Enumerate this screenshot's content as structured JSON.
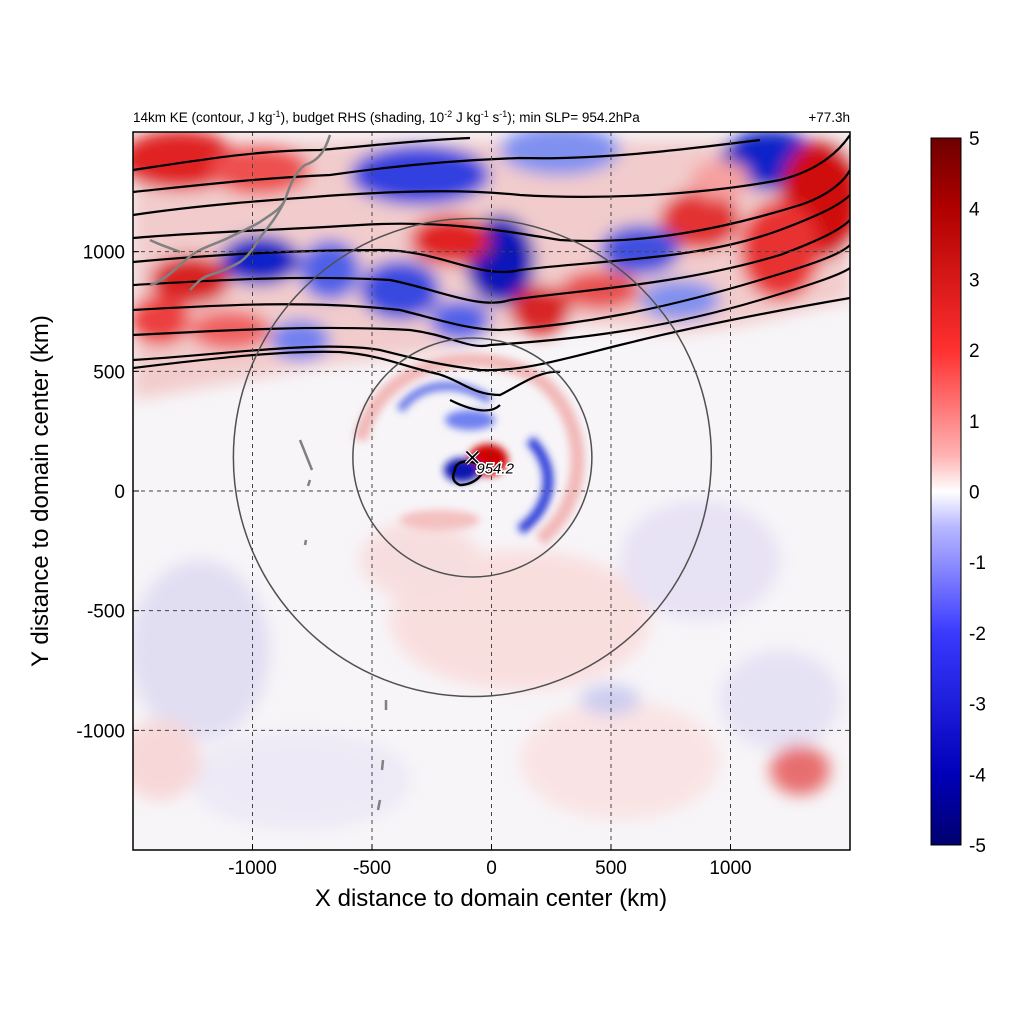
{
  "chart_data": {
    "type": "heatmap",
    "title_left_main": "14km KE (contour, J kg",
    "title_left_sup1": "-1",
    "title_left_mid1": "), budget RHS (shading, 10",
    "title_left_sup2": "-2",
    "title_left_mid2": " J kg",
    "title_left_sup3": "-1",
    "title_left_mid3": " s",
    "title_left_sup4": "-1",
    "title_left_end": "); min SLP= 954.2hPa",
    "title_right": "+77.3h",
    "xlabel": "X distance to domain center (km)",
    "ylabel": "Y distance to domain center (km)",
    "xlim": [
      -1500,
      1500
    ],
    "ylim": [
      -1500,
      1500
    ],
    "x_ticks": [
      {
        "value": -1000,
        "label": "-1000"
      },
      {
        "value": -500,
        "label": "-500"
      },
      {
        "value": 0,
        "label": "0"
      },
      {
        "value": 500,
        "label": "500"
      },
      {
        "value": 1000,
        "label": "1000"
      }
    ],
    "y_ticks": [
      {
        "value": 1000,
        "label": "1000"
      },
      {
        "value": 500,
        "label": "500"
      },
      {
        "value": 0,
        "label": "0"
      },
      {
        "value": -500,
        "label": "-500"
      },
      {
        "value": -1000,
        "label": "-1000"
      }
    ],
    "grid": true,
    "colorbar": {
      "range": [
        -5,
        5
      ],
      "colormap": "blue-white-red",
      "ticks": [
        {
          "value": 5,
          "label": "5"
        },
        {
          "value": 4,
          "label": "4"
        },
        {
          "value": 3,
          "label": "3"
        },
        {
          "value": 2,
          "label": "2"
        },
        {
          "value": 1,
          "label": "1"
        },
        {
          "value": 0,
          "label": "0"
        },
        {
          "value": -1,
          "label": "-1"
        },
        {
          "value": -2,
          "label": "-2"
        },
        {
          "value": -3,
          "label": "-3"
        },
        {
          "value": -4,
          "label": "-4"
        },
        {
          "value": -5,
          "label": "-5"
        }
      ]
    },
    "storm_center": {
      "x": -80,
      "y": 140,
      "label": "954.2"
    },
    "range_rings": [
      {
        "center_x": -80,
        "center_y": 140,
        "radius": 500
      },
      {
        "center_x": -80,
        "center_y": 140,
        "radius": 1000
      }
    ],
    "colors": {
      "positive": "#d40000",
      "negative": "#0010c8",
      "contour": "#000000",
      "coastline": "#808080",
      "ring": "#505050"
    }
  }
}
